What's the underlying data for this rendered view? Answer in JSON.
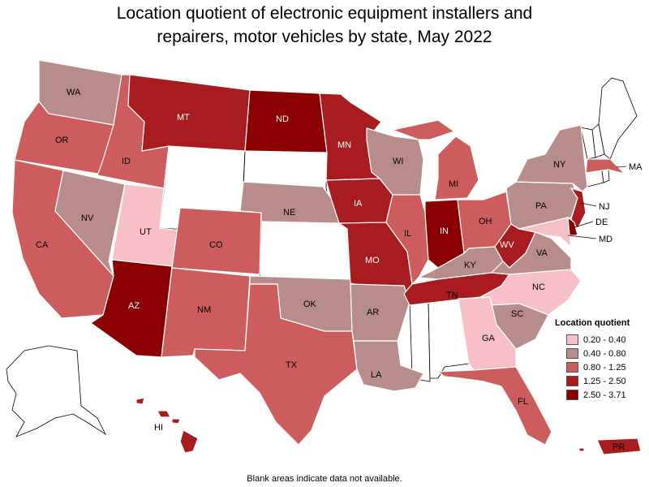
{
  "title_line1": "Location quotient of electronic equipment installers and",
  "title_line2": "repairers, motor vehicles by state, May 2022",
  "legend": {
    "title": "Location quotient",
    "items": [
      {
        "label": "0.20 - 0.40",
        "color": "#f7c0c8"
      },
      {
        "label": "0.40 - 0.80",
        "color": "#b98c8c"
      },
      {
        "label": "0.80 - 1.25",
        "color": "#cd5c5c"
      },
      {
        "label": "1.25 - 2.50",
        "color": "#a81c20"
      },
      {
        "label": "2.50 - 3.71",
        "color": "#8b0000"
      }
    ]
  },
  "note": "Blank areas indicate data not available.",
  "states": [
    {
      "abbr": "WA",
      "class": "0.40 - 0.80"
    },
    {
      "abbr": "OR",
      "class": "0.80 - 1.25"
    },
    {
      "abbr": "CA",
      "class": "0.80 - 1.25"
    },
    {
      "abbr": "ID",
      "class": "0.80 - 1.25"
    },
    {
      "abbr": "NV",
      "class": "0.40 - 0.80"
    },
    {
      "abbr": "UT",
      "class": "0.20 - 0.40"
    },
    {
      "abbr": "AZ",
      "class": "2.50 - 3.71"
    },
    {
      "abbr": "MT",
      "class": "1.25 - 2.50"
    },
    {
      "abbr": "CO",
      "class": "0.80 - 1.25"
    },
    {
      "abbr": "NM",
      "class": "0.80 - 1.25"
    },
    {
      "abbr": "ND",
      "class": "2.50 - 3.71"
    },
    {
      "abbr": "NE",
      "class": "0.40 - 0.80"
    },
    {
      "abbr": "OK",
      "class": "0.40 - 0.80"
    },
    {
      "abbr": "TX",
      "class": "0.80 - 1.25"
    },
    {
      "abbr": "MN",
      "class": "1.25 - 2.50"
    },
    {
      "abbr": "IA",
      "class": "1.25 - 2.50"
    },
    {
      "abbr": "MO",
      "class": "1.25 - 2.50"
    },
    {
      "abbr": "AR",
      "class": "0.40 - 0.80"
    },
    {
      "abbr": "LA",
      "class": "0.40 - 0.80"
    },
    {
      "abbr": "WI",
      "class": "0.40 - 0.80"
    },
    {
      "abbr": "IL",
      "class": "0.80 - 1.25"
    },
    {
      "abbr": "MI",
      "class": "0.80 - 1.25"
    },
    {
      "abbr": "IN",
      "class": "2.50 - 3.71"
    },
    {
      "abbr": "OH",
      "class": "0.80 - 1.25"
    },
    {
      "abbr": "KY",
      "class": "0.40 - 0.80"
    },
    {
      "abbr": "TN",
      "class": "1.25 - 2.50"
    },
    {
      "abbr": "WV",
      "class": "1.25 - 2.50"
    },
    {
      "abbr": "VA",
      "class": "0.40 - 0.80"
    },
    {
      "abbr": "NC",
      "class": "0.20 - 0.40"
    },
    {
      "abbr": "SC",
      "class": "0.40 - 0.80"
    },
    {
      "abbr": "GA",
      "class": "0.20 - 0.40"
    },
    {
      "abbr": "FL",
      "class": "0.80 - 1.25"
    },
    {
      "abbr": "PA",
      "class": "0.40 - 0.80"
    },
    {
      "abbr": "NY",
      "class": "0.40 - 0.80"
    },
    {
      "abbr": "NJ",
      "class": "1.25 - 2.50"
    },
    {
      "abbr": "DE",
      "class": "2.50 - 3.71"
    },
    {
      "abbr": "MD",
      "class": "0.20 - 0.40"
    },
    {
      "abbr": "MA",
      "class": "0.80 - 1.25"
    },
    {
      "abbr": "HI",
      "class": "1.25 - 2.50"
    },
    {
      "abbr": "PR",
      "class": "1.25 - 2.50"
    }
  ]
}
